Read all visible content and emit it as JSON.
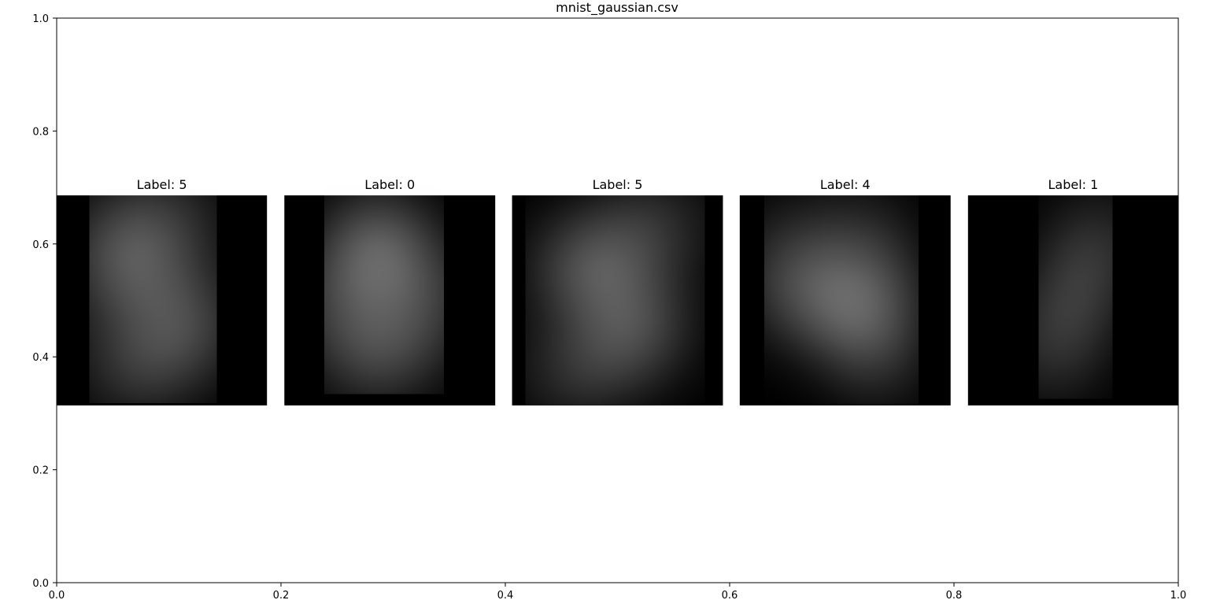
{
  "chart_data": {
    "type": "image-grid",
    "title": "mnist_gaussian.csv",
    "xlim": [
      0,
      1
    ],
    "ylim": [
      0,
      1
    ],
    "x_ticks": [
      0.0,
      0.2,
      0.4,
      0.6,
      0.8,
      1.0
    ],
    "y_ticks": [
      0.0,
      0.2,
      0.4,
      0.6,
      0.8,
      1.0
    ],
    "x_tick_labels": [
      "0.0",
      "0.2",
      "0.4",
      "0.6",
      "0.8",
      "1.0"
    ],
    "y_tick_labels": [
      "0.0",
      "0.2",
      "0.4",
      "0.6",
      "0.8",
      "1.0"
    ],
    "colormap": "gray",
    "panels": [
      {
        "label": "Label: 5",
        "digit": "5",
        "x_range": [
          0.0,
          0.1875
        ],
        "y_range": [
          0.314,
          0.686
        ]
      },
      {
        "label": "Label: 0",
        "digit": "0",
        "x_range": [
          0.203,
          0.391
        ],
        "y_range": [
          0.314,
          0.686
        ]
      },
      {
        "label": "Label: 5",
        "digit": "5",
        "x_range": [
          0.406,
          0.594
        ],
        "y_range": [
          0.314,
          0.686
        ]
      },
      {
        "label": "Label: 4",
        "digit": "4",
        "x_range": [
          0.609,
          0.797
        ],
        "y_range": [
          0.314,
          0.686
        ]
      },
      {
        "label": "Label: 1",
        "digit": "1",
        "x_range": [
          0.8125,
          1.0
        ],
        "y_range": [
          0.314,
          0.686
        ]
      }
    ]
  }
}
